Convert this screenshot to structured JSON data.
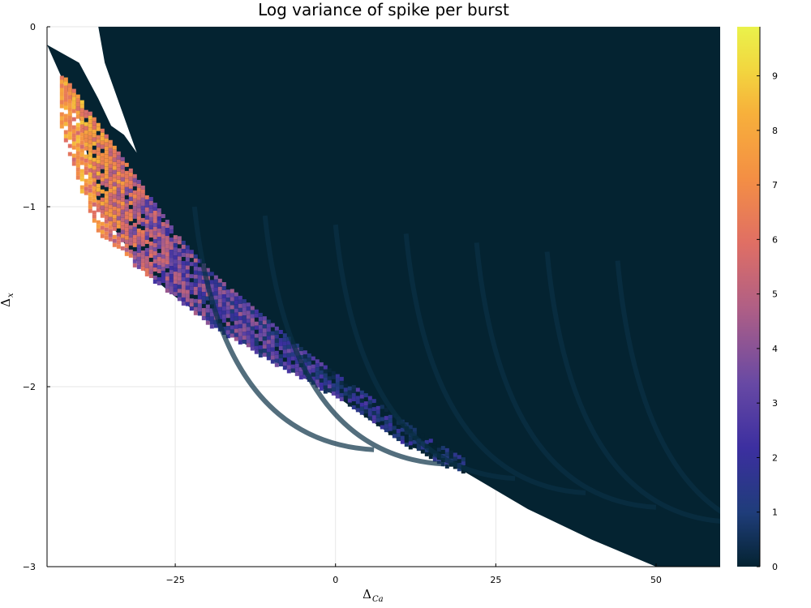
{
  "chart_data": {
    "type": "heatmap",
    "title": "Log variance of spike per burst",
    "xlabel": {
      "main": "Δ",
      "sub": "Ca"
    },
    "ylabel": {
      "main": "Δ",
      "sub": "x"
    },
    "xlim": [
      -45,
      60
    ],
    "ylim": [
      -3,
      0
    ],
    "x_ticks": [
      {
        "value": -25,
        "label": "−25"
      },
      {
        "value": 0,
        "label": "0"
      },
      {
        "value": 25,
        "label": "25"
      },
      {
        "value": 50,
        "label": "50"
      }
    ],
    "y_ticks": [
      {
        "value": 0,
        "label": "0"
      },
      {
        "value": -1,
        "label": "−1"
      },
      {
        "value": -2,
        "label": "−2"
      },
      {
        "value": -3,
        "label": "−3"
      }
    ],
    "grid": true,
    "colorbar": {
      "range": [
        0,
        9.9
      ],
      "ticks": [
        0,
        1,
        2,
        3,
        4,
        5,
        6,
        7,
        8,
        9
      ],
      "tick_labels": [
        "0",
        "1",
        "2",
        "3",
        "4",
        "5",
        "6",
        "7",
        "8",
        "9"
      ],
      "colors": [
        "#042331",
        "#1f3d7a",
        "#3c2fa0",
        "#6849a4",
        "#b05f85",
        "#e06f64",
        "#f48f44",
        "#f7b03b",
        "#f2d63f",
        "#eaf24b"
      ]
    },
    "boundary": [
      {
        "x": -45,
        "y": -0.1
      },
      {
        "x": -40,
        "y": -0.5
      },
      {
        "x": -37,
        "y": -1.0
      },
      {
        "x": -33,
        "y": -1.2
      },
      {
        "x": -30,
        "y": -1.35
      },
      {
        "x": -25,
        "y": -1.5
      },
      {
        "x": -18,
        "y": -1.68
      },
      {
        "x": -10,
        "y": -1.85
      },
      {
        "x": 0,
        "y": -2.05
      },
      {
        "x": 10,
        "y": -2.3
      },
      {
        "x": 20,
        "y": -2.47
      },
      {
        "x": 30,
        "y": -2.68
      },
      {
        "x": 40,
        "y": -2.85
      },
      {
        "x": 50,
        "y": -3.0
      }
    ],
    "edge": [
      {
        "x": -45,
        "y": -0.1
      },
      {
        "x": -40,
        "y": 0
      },
      {
        "x": -37,
        "y": 0
      }
    ],
    "edge_lower": [
      {
        "x": -40,
        "y": -0.2
      },
      {
        "x": -37,
        "y": -0.4
      },
      {
        "x": -35,
        "y": -0.55
      },
      {
        "x": -33,
        "y": -0.6
      },
      {
        "x": -31,
        "y": -0.7
      }
    ],
    "band": [
      {
        "x": -43,
        "y_top": -0.25,
        "y_bot": -0.55,
        "value": 6.5
      },
      {
        "x": -40,
        "y_top": -0.4,
        "y_bot": -0.9,
        "value": 6.8
      },
      {
        "x": -37,
        "y_top": -0.55,
        "y_bot": -1.15,
        "value": 6.2
      },
      {
        "x": -34,
        "y_top": -0.7,
        "y_bot": -1.22,
        "value": 5.5
      },
      {
        "x": -31,
        "y_top": -0.85,
        "y_bot": -1.35,
        "value": 4.6
      },
      {
        "x": -28,
        "y_top": -1.0,
        "y_bot": -1.42,
        "value": 3.8
      },
      {
        "x": -25,
        "y_top": -1.15,
        "y_bot": -1.5,
        "value": 3.2
      },
      {
        "x": -20,
        "y_top": -1.35,
        "y_bot": -1.65,
        "value": 2.8
      },
      {
        "x": -15,
        "y_top": -1.5,
        "y_bot": -1.75,
        "value": 2.6
      },
      {
        "x": -10,
        "y_top": -1.65,
        "y_bot": -1.86,
        "value": 2.3
      },
      {
        "x": -5,
        "y_top": -1.8,
        "y_bot": -1.96,
        "value": 1.9
      },
      {
        "x": 0,
        "y_top": -1.93,
        "y_bot": -2.06,
        "value": 1.5
      },
      {
        "x": 5,
        "y_top": -2.05,
        "y_bot": -2.17,
        "value": 1.1
      },
      {
        "x": 10,
        "y_top": -2.18,
        "y_bot": -2.3,
        "value": 0.7
      },
      {
        "x": 15,
        "y_top": -2.3,
        "y_bot": -2.4,
        "value": 0.4
      },
      {
        "x": 20,
        "y_top": -2.4,
        "y_bot": -2.48,
        "value": 0.2
      }
    ]
  }
}
